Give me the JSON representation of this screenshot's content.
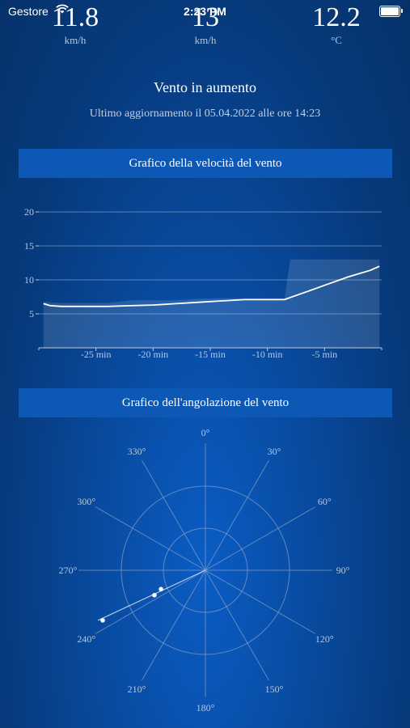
{
  "status_bar": {
    "carrier": "Gestore",
    "time": "2:23 PM"
  },
  "metrics": [
    {
      "value": "11.8",
      "unit": "km/h"
    },
    {
      "value": "13",
      "unit": "km/h"
    },
    {
      "value": "12.2",
      "unit": "°C"
    }
  ],
  "trend_text": "Vento in aumento",
  "last_update": "Ultimo aggiornamento il 05.04.2022 alle ore 14:23",
  "speed_section_title": "Grafico della velocità del vento",
  "direction_section_title": "Grafico dell'angolazione del vento",
  "colors": {
    "background": "#073a7c",
    "section_bar": "#0d57b5",
    "line": "#ffffff",
    "grid": "#7f9bc4"
  },
  "chart_data": [
    {
      "type": "line",
      "title": "Grafico della velocità del vento",
      "x_tick_labels": [
        "-25 min",
        "-20 min",
        "-15 min",
        "-10 min",
        "-5 min"
      ],
      "x_ticks": [
        -25,
        -20,
        -15,
        -10,
        -5
      ],
      "y_tick_labels": [
        "5",
        "10",
        "15",
        "20"
      ],
      "y_ticks": [
        5,
        10,
        15,
        20
      ],
      "xlim": [
        -30,
        0
      ],
      "ylim": [
        0,
        20
      ],
      "grid": true,
      "series": [
        {
          "role": "speed",
          "x": [
            -29.6,
            -29,
            -28,
            -26,
            -24,
            -22,
            -20,
            -18,
            -16,
            -14,
            -12,
            -10,
            -8.5,
            -8,
            -7,
            -6,
            -5,
            -4,
            -3,
            -2,
            -1,
            -0.2
          ],
          "y": [
            6.5,
            6.2,
            6.1,
            6.1,
            6.1,
            6.2,
            6.3,
            6.5,
            6.7,
            6.9,
            7.1,
            7.1,
            7.1,
            7.4,
            8.0,
            8.6,
            9.2,
            9.8,
            10.4,
            10.9,
            11.4,
            12.0
          ]
        },
        {
          "role": "gust-area",
          "x": [
            -29.6,
            -28,
            -24,
            -22,
            -20,
            -18,
            -16,
            -14,
            -12,
            -10,
            -8.5,
            -8,
            -0.2
          ],
          "y": [
            6.8,
            6.6,
            6.6,
            7.0,
            7.0,
            7.0,
            7.2,
            7.3,
            7.3,
            7.3,
            7.3,
            13.0,
            13.0
          ]
        }
      ]
    },
    {
      "type": "scatter",
      "title": "Grafico dell'angolazione del vento",
      "angle_labels": [
        "0°",
        "30°",
        "60°",
        "90°",
        "120°",
        "150°",
        "180°",
        "210°",
        "240°",
        "270°",
        "300°",
        "330°"
      ],
      "angles": [
        0,
        30,
        60,
        90,
        120,
        150,
        180,
        210,
        240,
        270,
        300,
        330
      ],
      "rlim": [
        0,
        15
      ],
      "points": [
        {
          "angle": 244,
          "r": 13.5
        },
        {
          "angle": 244,
          "r": 6.7
        },
        {
          "angle": 247,
          "r": 5.7
        }
      ],
      "trend_line": {
        "angle": 245,
        "r": 14
      }
    }
  ]
}
